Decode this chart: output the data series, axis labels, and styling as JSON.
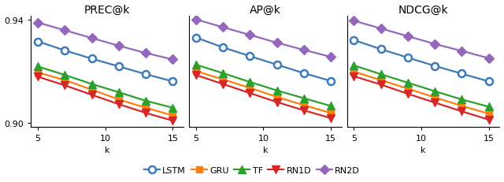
{
  "k_values": [
    5,
    7,
    9,
    11,
    13,
    15
  ],
  "titles": [
    "PREC@k",
    "AP@k",
    "NDCG@k"
  ],
  "xlabel": "k",
  "ylim": [
    0.8985,
    0.9415
  ],
  "yticks": [
    0.9,
    0.94
  ],
  "series": {
    "LSTM": {
      "color": "#3c7ab8",
      "marker": "o",
      "markersize": 6.5,
      "prec": [
        0.9315,
        0.928,
        0.9248,
        0.9218,
        0.9188,
        0.916
      ],
      "ap": [
        0.933,
        0.9292,
        0.9258,
        0.9225,
        0.9192,
        0.9162
      ],
      "ndcg": [
        0.932,
        0.9285,
        0.9252,
        0.922,
        0.919,
        0.916
      ]
    },
    "GRU": {
      "color": "#ff7f0e",
      "marker": "s",
      "markersize": 5.5,
      "prec": [
        0.9195,
        0.9165,
        0.9128,
        0.909,
        0.9058,
        0.9028
      ],
      "ap": [
        0.92,
        0.9168,
        0.9135,
        0.91,
        0.9068,
        0.9038
      ],
      "ndcg": [
        0.9198,
        0.9165,
        0.9132,
        0.9098,
        0.9065,
        0.9035
      ]
    },
    "TF": {
      "color": "#2ca02c",
      "marker": "^",
      "markersize": 6.5,
      "prec": [
        0.9218,
        0.9185,
        0.915,
        0.9118,
        0.9085,
        0.9058
      ],
      "ap": [
        0.9225,
        0.9192,
        0.9158,
        0.9125,
        0.9095,
        0.9065
      ],
      "ndcg": [
        0.9222,
        0.9188,
        0.9155,
        0.9122,
        0.909,
        0.9062
      ]
    },
    "RN1D": {
      "color": "#d62728",
      "marker": "v",
      "markersize": 6.5,
      "prec": [
        0.9178,
        0.9145,
        0.9108,
        0.9072,
        0.9038,
        0.9008
      ],
      "ap": [
        0.9185,
        0.915,
        0.9115,
        0.908,
        0.9048,
        0.9018
      ],
      "ndcg": [
        0.918,
        0.9148,
        0.9112,
        0.9078,
        0.9044,
        0.9012
      ]
    },
    "RN2D": {
      "color": "#9467bd",
      "marker": "D",
      "markersize": 6.5,
      "prec": [
        0.9388,
        0.9358,
        0.9328,
        0.9298,
        0.927,
        0.9245
      ],
      "ap": [
        0.94,
        0.937,
        0.934,
        0.931,
        0.9282,
        0.9255
      ],
      "ndcg": [
        0.9395,
        0.9365,
        0.9335,
        0.9305,
        0.9278,
        0.925
      ]
    }
  },
  "legend_order": [
    "LSTM",
    "GRU",
    "TF",
    "RN1D",
    "RN2D"
  ],
  "series_keys": [
    "prec",
    "ap",
    "ndcg"
  ],
  "background_color": "#ffffff",
  "linewidth": 1.6,
  "title_fontsize": 10,
  "tick_fontsize": 8,
  "legend_fontsize": 8
}
